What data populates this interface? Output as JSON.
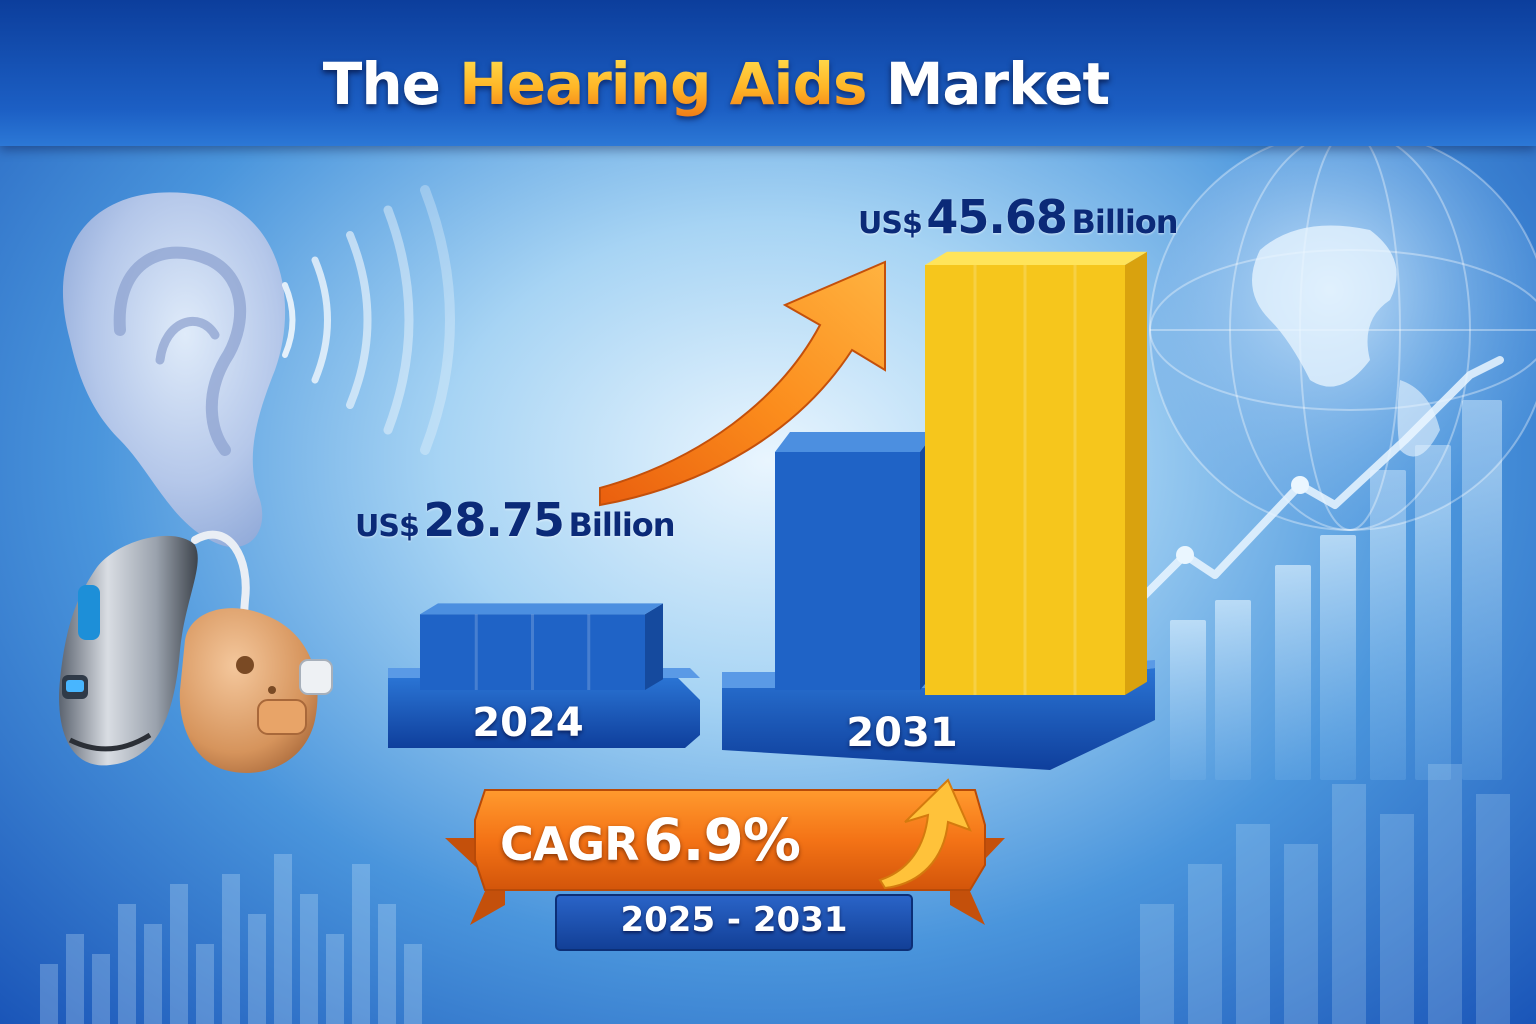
{
  "header": {
    "title_start": "The",
    "title_highlight": "Hearing Aids",
    "title_end": "Market"
  },
  "chart_data": {
    "type": "bar",
    "categories": [
      "2024",
      "2031"
    ],
    "values": [
      28.75,
      45.68
    ],
    "value_labels": [
      {
        "currency": "US$",
        "number": "28.75",
        "unit": "Billion"
      },
      {
        "currency": "US$",
        "number": "45.68",
        "unit": "Billion"
      }
    ],
    "unit": "US$ Billion",
    "title": "The Hearing Aids Market",
    "xlabel": "",
    "ylabel": "",
    "grid": false,
    "legend": "none",
    "colors": {
      "2024": "#1f63c6",
      "2031": "#f6c61c"
    }
  },
  "cagr": {
    "label": "CAGR",
    "value": "6.9%",
    "period": "2025 - 2031"
  },
  "icons": [
    "ear-icon",
    "sound-waves-icon",
    "hearing-aid-bte-icon",
    "hearing-aid-ite-icon",
    "growth-arrow-icon",
    "globe-icon",
    "trend-line-icon"
  ],
  "colors": {
    "background": "#2f78d2",
    "title_band": "#0c3e9c",
    "accent_orange": "#f57c14",
    "accent_yellow": "#f6c61c",
    "bar_blue": "#1f63c6",
    "label_navy": "#0b2a78"
  }
}
